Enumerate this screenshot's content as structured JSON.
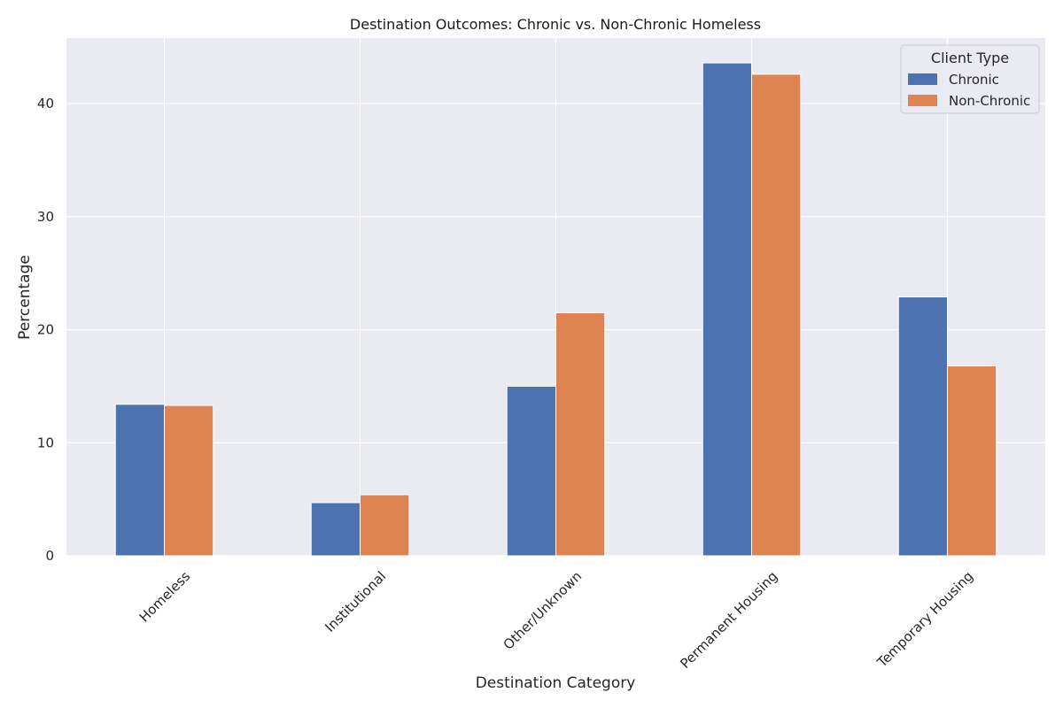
{
  "chart_data": {
    "type": "bar",
    "title": "Destination Outcomes: Chronic vs. Non-Chronic Homeless",
    "xlabel": "Destination Category",
    "ylabel": "Percentage",
    "categories": [
      "Homeless",
      "Institutional",
      "Other/Unknown",
      "Permanent Housing",
      "Temporary Housing"
    ],
    "series": [
      {
        "name": "Chronic",
        "color": "#4c72b0",
        "values": [
          13.4,
          4.7,
          15.0,
          43.6,
          22.9
        ]
      },
      {
        "name": "Non-Chronic",
        "color": "#dd8452",
        "values": [
          13.3,
          5.4,
          21.5,
          42.6,
          16.8
        ]
      }
    ],
    "ylim": [
      0,
      45.8
    ],
    "yticks": [
      0,
      10,
      20,
      30,
      40
    ],
    "legend": {
      "title": "Client Type",
      "placement": "top-right"
    },
    "grid": true,
    "background": "#eaeaf2",
    "grid_color": "#ffffff"
  }
}
